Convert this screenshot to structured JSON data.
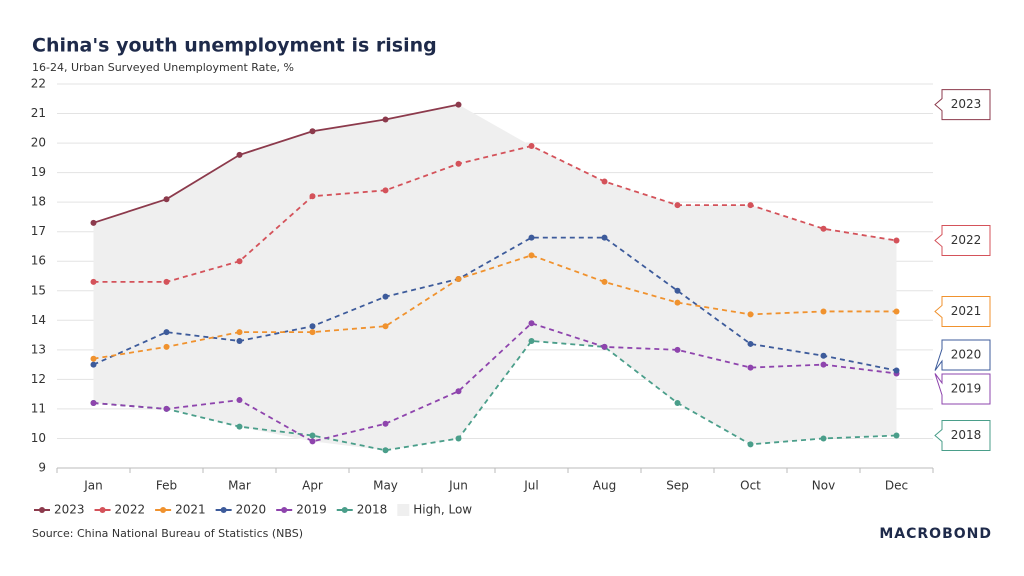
{
  "chart_data": {
    "type": "line",
    "title": "China's youth unemployment is rising",
    "subtitle": "16-24, Urban Surveyed Unemployment Rate, %",
    "source": "Source: China National Bureau of Statistics (NBS)",
    "brand": "MACROBOND",
    "categories": [
      "Jan",
      "Feb",
      "Mar",
      "Apr",
      "May",
      "Jun",
      "Jul",
      "Aug",
      "Sep",
      "Oct",
      "Nov",
      "Dec"
    ],
    "ylim": [
      9,
      22
    ],
    "yticks": [
      9,
      10,
      11,
      12,
      13,
      14,
      15,
      16,
      17,
      18,
      19,
      20,
      21,
      22
    ],
    "grid": true,
    "series": [
      {
        "name": "2023",
        "color": "#8c3a4c",
        "dashed": false,
        "values": [
          17.3,
          18.1,
          19.6,
          20.4,
          20.8,
          21.3,
          null,
          null,
          null,
          null,
          null,
          null
        ]
      },
      {
        "name": "2022",
        "color": "#d4525a",
        "dashed": true,
        "values": [
          15.3,
          15.3,
          16.0,
          18.2,
          18.4,
          19.3,
          19.9,
          18.7,
          17.9,
          17.9,
          17.1,
          16.7
        ]
      },
      {
        "name": "2021",
        "color": "#f0922e",
        "dashed": true,
        "values": [
          12.7,
          13.1,
          13.6,
          13.6,
          13.8,
          15.4,
          16.2,
          15.3,
          14.6,
          14.2,
          14.3,
          14.3
        ]
      },
      {
        "name": "2020",
        "color": "#3d5b9b",
        "dashed": true,
        "values": [
          12.5,
          13.6,
          13.3,
          13.8,
          14.8,
          15.4,
          16.8,
          16.8,
          15.0,
          13.2,
          12.8,
          12.3
        ]
      },
      {
        "name": "2019",
        "color": "#8e44ad",
        "dashed": true,
        "values": [
          11.2,
          11.0,
          11.3,
          9.9,
          10.5,
          11.6,
          13.9,
          13.1,
          13.0,
          12.4,
          12.5,
          12.2
        ]
      },
      {
        "name": "2018",
        "color": "#4a9e8a",
        "dashed": true,
        "values": [
          11.2,
          11.0,
          10.4,
          10.1,
          9.6,
          10.0,
          13.3,
          13.1,
          11.2,
          9.8,
          10.0,
          10.1
        ]
      }
    ],
    "band": {
      "name": "High, Low",
      "color": "#efefef",
      "high": [
        17.3,
        18.1,
        19.6,
        20.4,
        20.8,
        21.3,
        19.9,
        18.7,
        17.9,
        17.9,
        17.1,
        16.7
      ],
      "low": [
        11.2,
        11.0,
        10.4,
        9.9,
        9.6,
        10.0,
        13.3,
        13.1,
        11.2,
        9.8,
        10.0,
        10.1
      ]
    }
  }
}
